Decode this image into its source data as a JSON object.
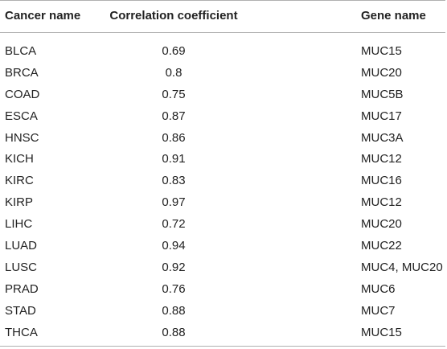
{
  "table": {
    "headers": {
      "cancer": "Cancer name",
      "correlation": "Correlation coefficient",
      "gene": "Gene name"
    },
    "rows": [
      {
        "cancer": "BLCA",
        "correlation": "0.69",
        "gene": "MUC15"
      },
      {
        "cancer": "BRCA",
        "correlation": "0.8",
        "gene": "MUC20"
      },
      {
        "cancer": "COAD",
        "correlation": "0.75",
        "gene": "MUC5B"
      },
      {
        "cancer": "ESCA",
        "correlation": "0.87",
        "gene": "MUC17"
      },
      {
        "cancer": "HNSC",
        "correlation": "0.86",
        "gene": "MUC3A"
      },
      {
        "cancer": "KICH",
        "correlation": "0.91",
        "gene": "MUC12"
      },
      {
        "cancer": "KIRC",
        "correlation": "0.83",
        "gene": "MUC16"
      },
      {
        "cancer": "KIRP",
        "correlation": "0.97",
        "gene": "MUC12"
      },
      {
        "cancer": "LIHC",
        "correlation": "0.72",
        "gene": "MUC20"
      },
      {
        "cancer": "LUAD",
        "correlation": "0.94",
        "gene": "MUC22"
      },
      {
        "cancer": "LUSC",
        "correlation": "0.92",
        "gene": "MUC4, MUC20"
      },
      {
        "cancer": "PRAD",
        "correlation": "0.76",
        "gene": "MUC6"
      },
      {
        "cancer": "STAD",
        "correlation": "0.88",
        "gene": "MUC7"
      },
      {
        "cancer": "THCA",
        "correlation": "0.88",
        "gene": "MUC15"
      }
    ]
  }
}
